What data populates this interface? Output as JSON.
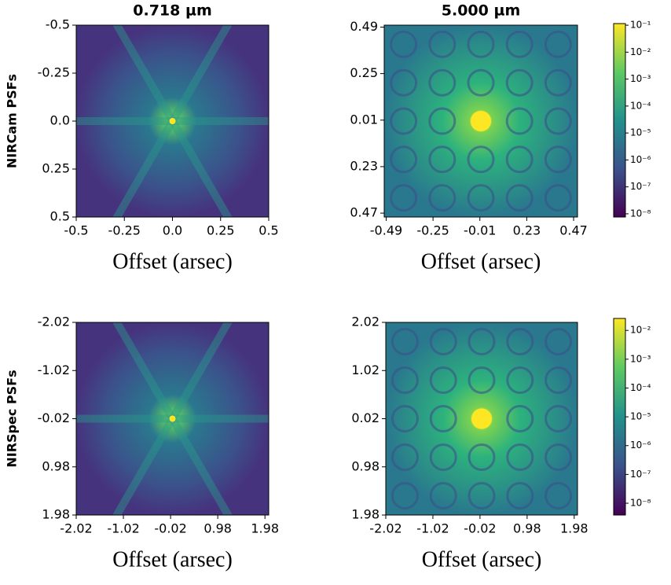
{
  "chart_data": [
    {
      "type": "image",
      "title": "0.718 µm",
      "ylabel": "NIRCam PSFs",
      "xlabel": "Offset (arsec)",
      "xlim": [
        -0.5,
        0.5
      ],
      "ylim": [
        0.5,
        -0.5
      ],
      "xticks": [
        -0.5,
        -0.25,
        {
          "value": 0,
          "label": "0.0"
        },
        0.25,
        0.5
      ],
      "yticks": [
        -0.5,
        -0.25,
        {
          "value": 0,
          "label": "0.0"
        },
        0.25,
        0.5
      ]
    },
    {
      "type": "image",
      "title": "5.000 µm",
      "xlabel": "Offset (arsec)",
      "xlim": [
        -0.5,
        0.49
      ],
      "ylim": [
        0.49,
        -0.5
      ],
      "xticks": [
        -0.49,
        -0.25,
        -0.01,
        0.23,
        0.47
      ],
      "yticks": [
        {
          "value": -0.49,
          "label": "0.49"
        },
        {
          "value": -0.25,
          "label": "0.25"
        },
        {
          "value": -0.01,
          "label": "0.01"
        },
        0.23,
        0.47
      ],
      "colorbar": {
        "scale": "log",
        "lim": [
          7.6e-09,
          0.115
        ],
        "ticks": [
          {
            "value": 0.1,
            "label": "10⁻¹"
          },
          {
            "value": 0.01,
            "label": "10⁻²"
          },
          {
            "value": 0.001,
            "label": "10⁻³"
          },
          {
            "value": 0.0001,
            "label": "10⁻⁴"
          },
          {
            "value": 1e-05,
            "label": "10⁻⁵"
          },
          {
            "value": 1e-06,
            "label": "10⁻⁶"
          },
          {
            "value": 1e-07,
            "label": "10⁻⁷"
          },
          {
            "value": 1e-08,
            "label": "10⁻⁸"
          }
        ]
      }
    },
    {
      "type": "image",
      "ylabel": "NIRSpec PSFs",
      "xlabel": "Offset (arsec)",
      "xlim": [
        -2.02,
        2.06
      ],
      "ylim": [
        1.98,
        -2.02
      ],
      "xticks": [
        -2.02,
        -1.02,
        -0.02,
        0.98,
        1.98
      ],
      "yticks": [
        -2.02,
        -1.02,
        -0.02,
        0.98,
        1.98
      ]
    },
    {
      "type": "image",
      "xlabel": "Offset (arsec)",
      "xlim": [
        -2.02,
        2.05
      ],
      "ylim": [
        1.98,
        -2.02
      ],
      "xticks": [
        -2.02,
        -1.02,
        -0.02,
        0.98,
        1.98
      ],
      "yticks": [
        {
          "value": -2.02,
          "label": "2.02"
        },
        {
          "value": -1.02,
          "label": "1.02"
        },
        {
          "value": -0.02,
          "label": "0.02"
        },
        0.98,
        1.98
      ],
      "colorbar": {
        "scale": "log",
        "lim": [
          3.9e-09,
          0.026
        ],
        "ticks": [
          {
            "value": 0.01,
            "label": "10⁻²"
          },
          {
            "value": 0.001,
            "label": "10⁻³"
          },
          {
            "value": 0.0001,
            "label": "10⁻⁴"
          },
          {
            "value": 1e-05,
            "label": "10⁻⁵"
          },
          {
            "value": 1e-06,
            "label": "10⁻⁶"
          },
          {
            "value": 1e-07,
            "label": "10⁻⁷"
          },
          {
            "value": 1e-08,
            "label": "10⁻⁸"
          }
        ]
      }
    }
  ]
}
